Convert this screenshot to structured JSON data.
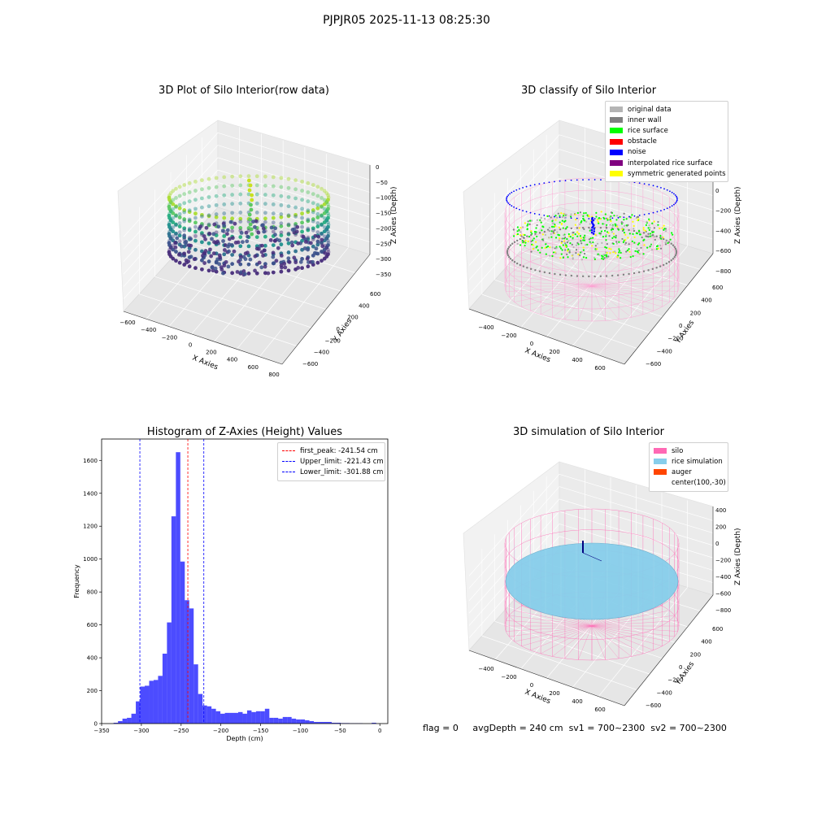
{
  "suptitle": "PJPJR05 2025-11-13 08:25:30",
  "chart_data": [
    {
      "type": "scatter",
      "title": "3D Plot of Silo Interior(row data)",
      "xlabel": "X Axies",
      "ylabel": "Y Axies",
      "zlabel": "Z Axies (Depth)",
      "x_ticks": [
        "−600",
        "−400",
        "−200",
        "0",
        "200",
        "400",
        "600",
        "800"
      ],
      "y_ticks": [
        "−600",
        "−400",
        "−200",
        "0",
        "200",
        "400",
        "600"
      ],
      "z_ticks": [
        "0",
        "−50",
        "−100",
        "−150",
        "−200",
        "−250",
        "−300",
        "−350"
      ],
      "colormap": "viridis"
    },
    {
      "type": "scatter",
      "title": "3D classify of Silo Interior",
      "xlabel": "X Axies",
      "ylabel": "Y Axies",
      "zlabel": "Z Axies (Depth)",
      "x_ticks": [
        "−400",
        "−200",
        "0",
        "200",
        "400",
        "600"
      ],
      "y_ticks": [
        "−600",
        "−400",
        "−200",
        "0",
        "200",
        "400",
        "600"
      ],
      "z_ticks": [
        "200",
        "0",
        "−200",
        "−400",
        "−600",
        "−800"
      ],
      "legend": [
        {
          "label": "original data",
          "color": "#b4b4b4"
        },
        {
          "label": "inner wall",
          "color": "#808080"
        },
        {
          "label": "rice surface",
          "color": "#00ff00"
        },
        {
          "label": "obstacle",
          "color": "#ff0000"
        },
        {
          "label": "noise",
          "color": "#0000ff"
        },
        {
          "label": "interpolated rice surface",
          "color": "#800080"
        },
        {
          "label": "symmetric generated points",
          "color": "#ffff00"
        }
      ]
    },
    {
      "type": "bar",
      "title": "Histogram of Z-Axies (Height) Values",
      "xlabel": "Depth (cm)",
      "ylabel": "Frequency",
      "xlim": [
        -350,
        10
      ],
      "ylim": [
        0,
        1730
      ],
      "x_ticks": [
        "−350",
        "−300",
        "−250",
        "−200",
        "−150",
        "−100",
        "−50",
        "0"
      ],
      "x_tick_values": [
        -350,
        -300,
        -250,
        -200,
        -150,
        -100,
        -50,
        0
      ],
      "y_ticks": [
        "0",
        "200",
        "400",
        "600",
        "800",
        "1000",
        "1200",
        "1400",
        "1600"
      ],
      "y_tick_values": [
        0,
        200,
        400,
        600,
        800,
        1000,
        1200,
        1400,
        1600
      ],
      "bar_color": "#0000ff",
      "bin_width": 5.6,
      "bin_starts": [
        -335,
        -329.4,
        -323.8,
        -318.2,
        -312.6,
        -307,
        -301.4,
        -295.8,
        -290.2,
        -284.6,
        -279,
        -273.4,
        -267.8,
        -262.2,
        -256.6,
        -251,
        -245.4,
        -239.8,
        -234.2,
        -228.6,
        -223,
        -217.4,
        -211.8,
        -206.2,
        -200.6,
        -195,
        -189.4,
        -183.8,
        -178.2,
        -172.6,
        -167,
        -161.4,
        -155.8,
        -150.2,
        -144.6,
        -139,
        -133.4,
        -127.8,
        -122.2,
        -116.6,
        -111,
        -105.4,
        -99.8,
        -94.2,
        -88.6,
        -83,
        -77.4,
        -71.8,
        -66.2,
        -60.6,
        -55,
        -49.4,
        -43.8,
        -38.2,
        -32.6,
        -27,
        -21.4,
        -15.8,
        -10.2,
        -4.6
      ],
      "values": [
        5,
        15,
        30,
        35,
        60,
        135,
        225,
        230,
        260,
        265,
        290,
        425,
        615,
        1260,
        1650,
        985,
        750,
        700,
        360,
        180,
        110,
        105,
        90,
        75,
        60,
        65,
        65,
        65,
        70,
        60,
        80,
        70,
        75,
        75,
        90,
        35,
        35,
        30,
        40,
        40,
        30,
        25,
        25,
        20,
        15,
        10,
        10,
        10,
        10,
        5,
        5,
        3,
        3,
        2,
        2,
        2,
        0,
        0,
        5,
        0
      ],
      "vlines": [
        {
          "label": "first_peak: -241.54 cm",
          "x": -241.54,
          "color": "#ff0000"
        },
        {
          "label": "Upper_limit: -221.43 cm",
          "x": -221.43,
          "color": "#0000ff"
        },
        {
          "label": "Lower_limit: -301.88 cm",
          "x": -301.88,
          "color": "#0000ff"
        }
      ]
    },
    {
      "type": "scatter",
      "title": "3D simulation of Silo Interior",
      "xlabel": "X Axies",
      "ylabel": "Y Axies",
      "zlabel": "Z Axies (Depth)",
      "x_ticks": [
        "−400",
        "−200",
        "0",
        "200",
        "400",
        "600"
      ],
      "y_ticks": [
        "−600",
        "−400",
        "−200",
        "0",
        "200",
        "400",
        "600"
      ],
      "z_ticks": [
        "400",
        "200",
        "0",
        "−200",
        "−400",
        "−600",
        "−800"
      ],
      "legend": [
        {
          "label": "silo",
          "color": "#ff69b4"
        },
        {
          "label": "rice simulation",
          "color": "#87ceeb"
        },
        {
          "label": "auger",
          "color": "#ff4500"
        },
        {
          "label": "center(100,-30)",
          "color": ""
        }
      ]
    }
  ],
  "footer": {
    "flag": "flag = 0",
    "avg_depth": "avgDepth = 240 cm",
    "sv1": "sv1 = 700~2300",
    "sv2": "sv2 = 700~2300"
  }
}
